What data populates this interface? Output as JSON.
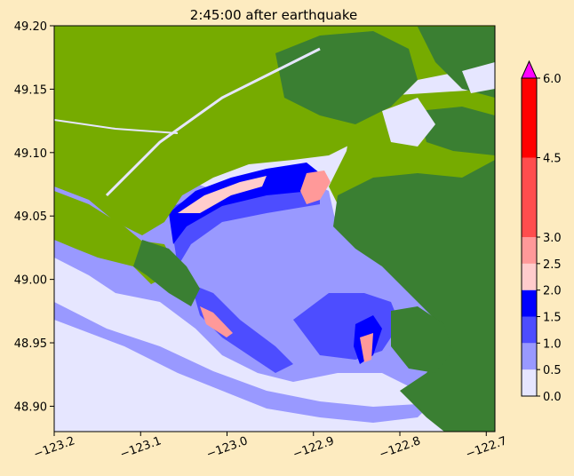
{
  "chart_data": {
    "type": "heatmap",
    "title": "2:45:00 after earthquake",
    "xlabel": "",
    "ylabel": "",
    "xlim": [
      -123.2,
      -122.69
    ],
    "ylim": [
      48.88,
      49.2
    ],
    "xticks": [
      {
        "value": -123.2,
        "label": "−123.2"
      },
      {
        "value": -123.1,
        "label": "−123.1"
      },
      {
        "value": -123.0,
        "label": "−123.0"
      },
      {
        "value": -122.9,
        "label": "−122.9"
      },
      {
        "value": -122.8,
        "label": "−122.8"
      },
      {
        "value": -122.7,
        "label": "−122.7"
      }
    ],
    "yticks": [
      {
        "value": 48.9,
        "label": "48.90"
      },
      {
        "value": 48.95,
        "label": "48.95"
      },
      {
        "value": 49.0,
        "label": "49.00"
      },
      {
        "value": 49.05,
        "label": "49.05"
      },
      {
        "value": 49.1,
        "label": "49.10"
      },
      {
        "value": 49.15,
        "label": "49.15"
      },
      {
        "value": 49.2,
        "label": "49.20"
      }
    ],
    "grid": false,
    "colorbar": {
      "range": [
        0.0,
        6.0
      ],
      "extend": "max",
      "over_color": "#ff00ff",
      "levels": [
        {
          "from": 0.0,
          "to": 0.5,
          "color": "#e6e6ff",
          "label": "0.0"
        },
        {
          "from": 0.5,
          "to": 1.0,
          "color": "#9999ff",
          "label": "0.5"
        },
        {
          "from": 1.0,
          "to": 1.5,
          "color": "#4d4dff",
          "label": "1.0"
        },
        {
          "from": 1.5,
          "to": 2.0,
          "color": "#0000ff",
          "label": "1.5"
        },
        {
          "from": 2.0,
          "to": 2.5,
          "color": "#ffcccc",
          "label": "2.0"
        },
        {
          "from": 2.5,
          "to": 3.0,
          "color": "#ff9999",
          "label": "2.5"
        },
        {
          "from": 3.0,
          "to": 4.5,
          "color": "#ff4d4d",
          "label": "3.0"
        },
        {
          "from": 4.5,
          "to": 6.0,
          "color": "#ff0000",
          "label": "4.5"
        }
      ],
      "top_label": "6.0"
    },
    "land_colors": {
      "lowland": "#76ab00",
      "highland": "#3a7f32"
    }
  }
}
